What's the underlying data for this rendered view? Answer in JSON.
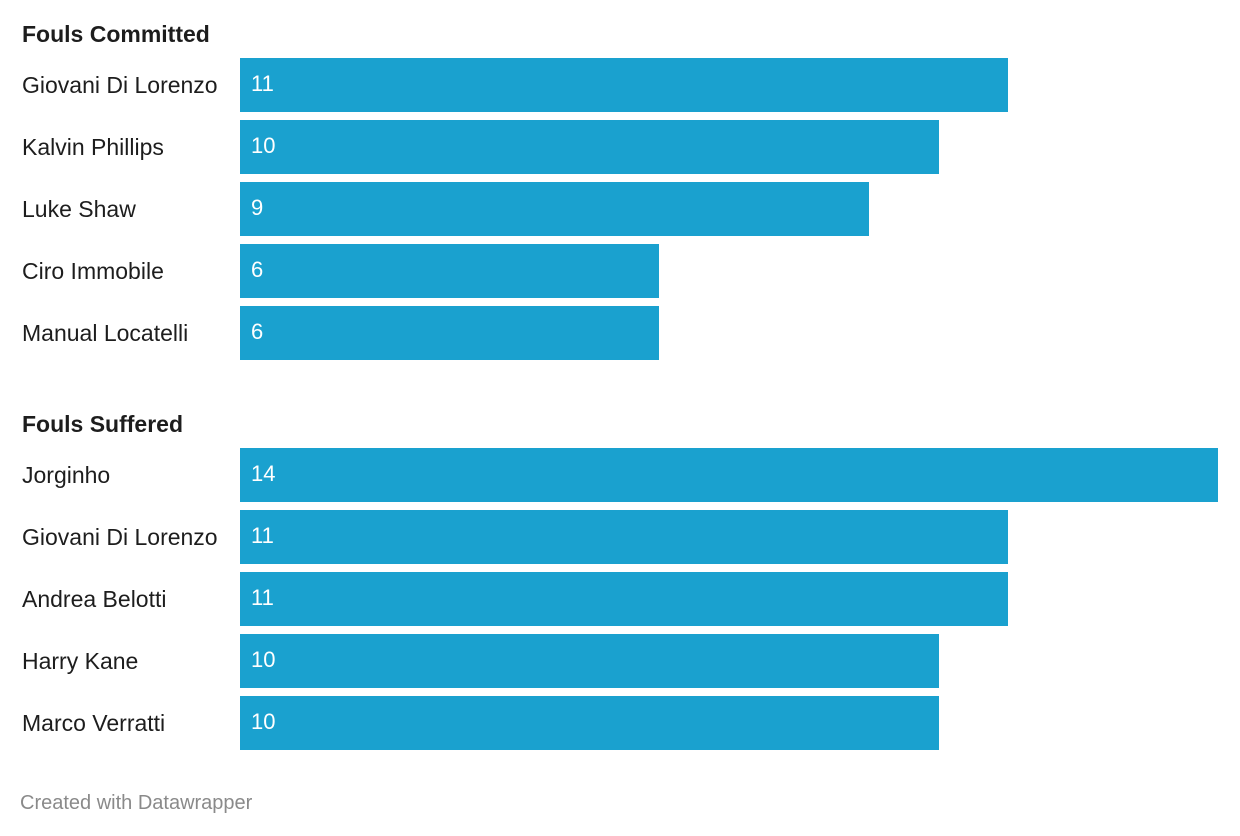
{
  "chart_data": [
    {
      "type": "bar",
      "orientation": "horizontal",
      "title": "Fouls Committed",
      "categories": [
        "Giovani Di Lorenzo",
        "Kalvin Phillips",
        "Luke Shaw",
        "Ciro Immobile",
        "Manual Locatelli"
      ],
      "values": [
        11,
        10,
        9,
        6,
        6
      ],
      "value_labels": [
        "11",
        "10",
        "9",
        "6",
        "6"
      ],
      "xlim": [
        0,
        14
      ],
      "grid": false,
      "color": "#1aa1cf"
    },
    {
      "type": "bar",
      "orientation": "horizontal",
      "title": "Fouls Suffered",
      "categories": [
        "Jorginho",
        "Giovani Di Lorenzo",
        "Andrea Belotti",
        "Harry Kane",
        "Marco Verratti"
      ],
      "values": [
        14,
        11,
        11,
        10,
        10
      ],
      "value_labels": [
        "14",
        "11",
        "11",
        "10",
        "10"
      ],
      "xlim": [
        0,
        14
      ],
      "grid": false,
      "color": "#1aa1cf"
    }
  ],
  "footer": {
    "credit": "Created with Datawrapper"
  }
}
